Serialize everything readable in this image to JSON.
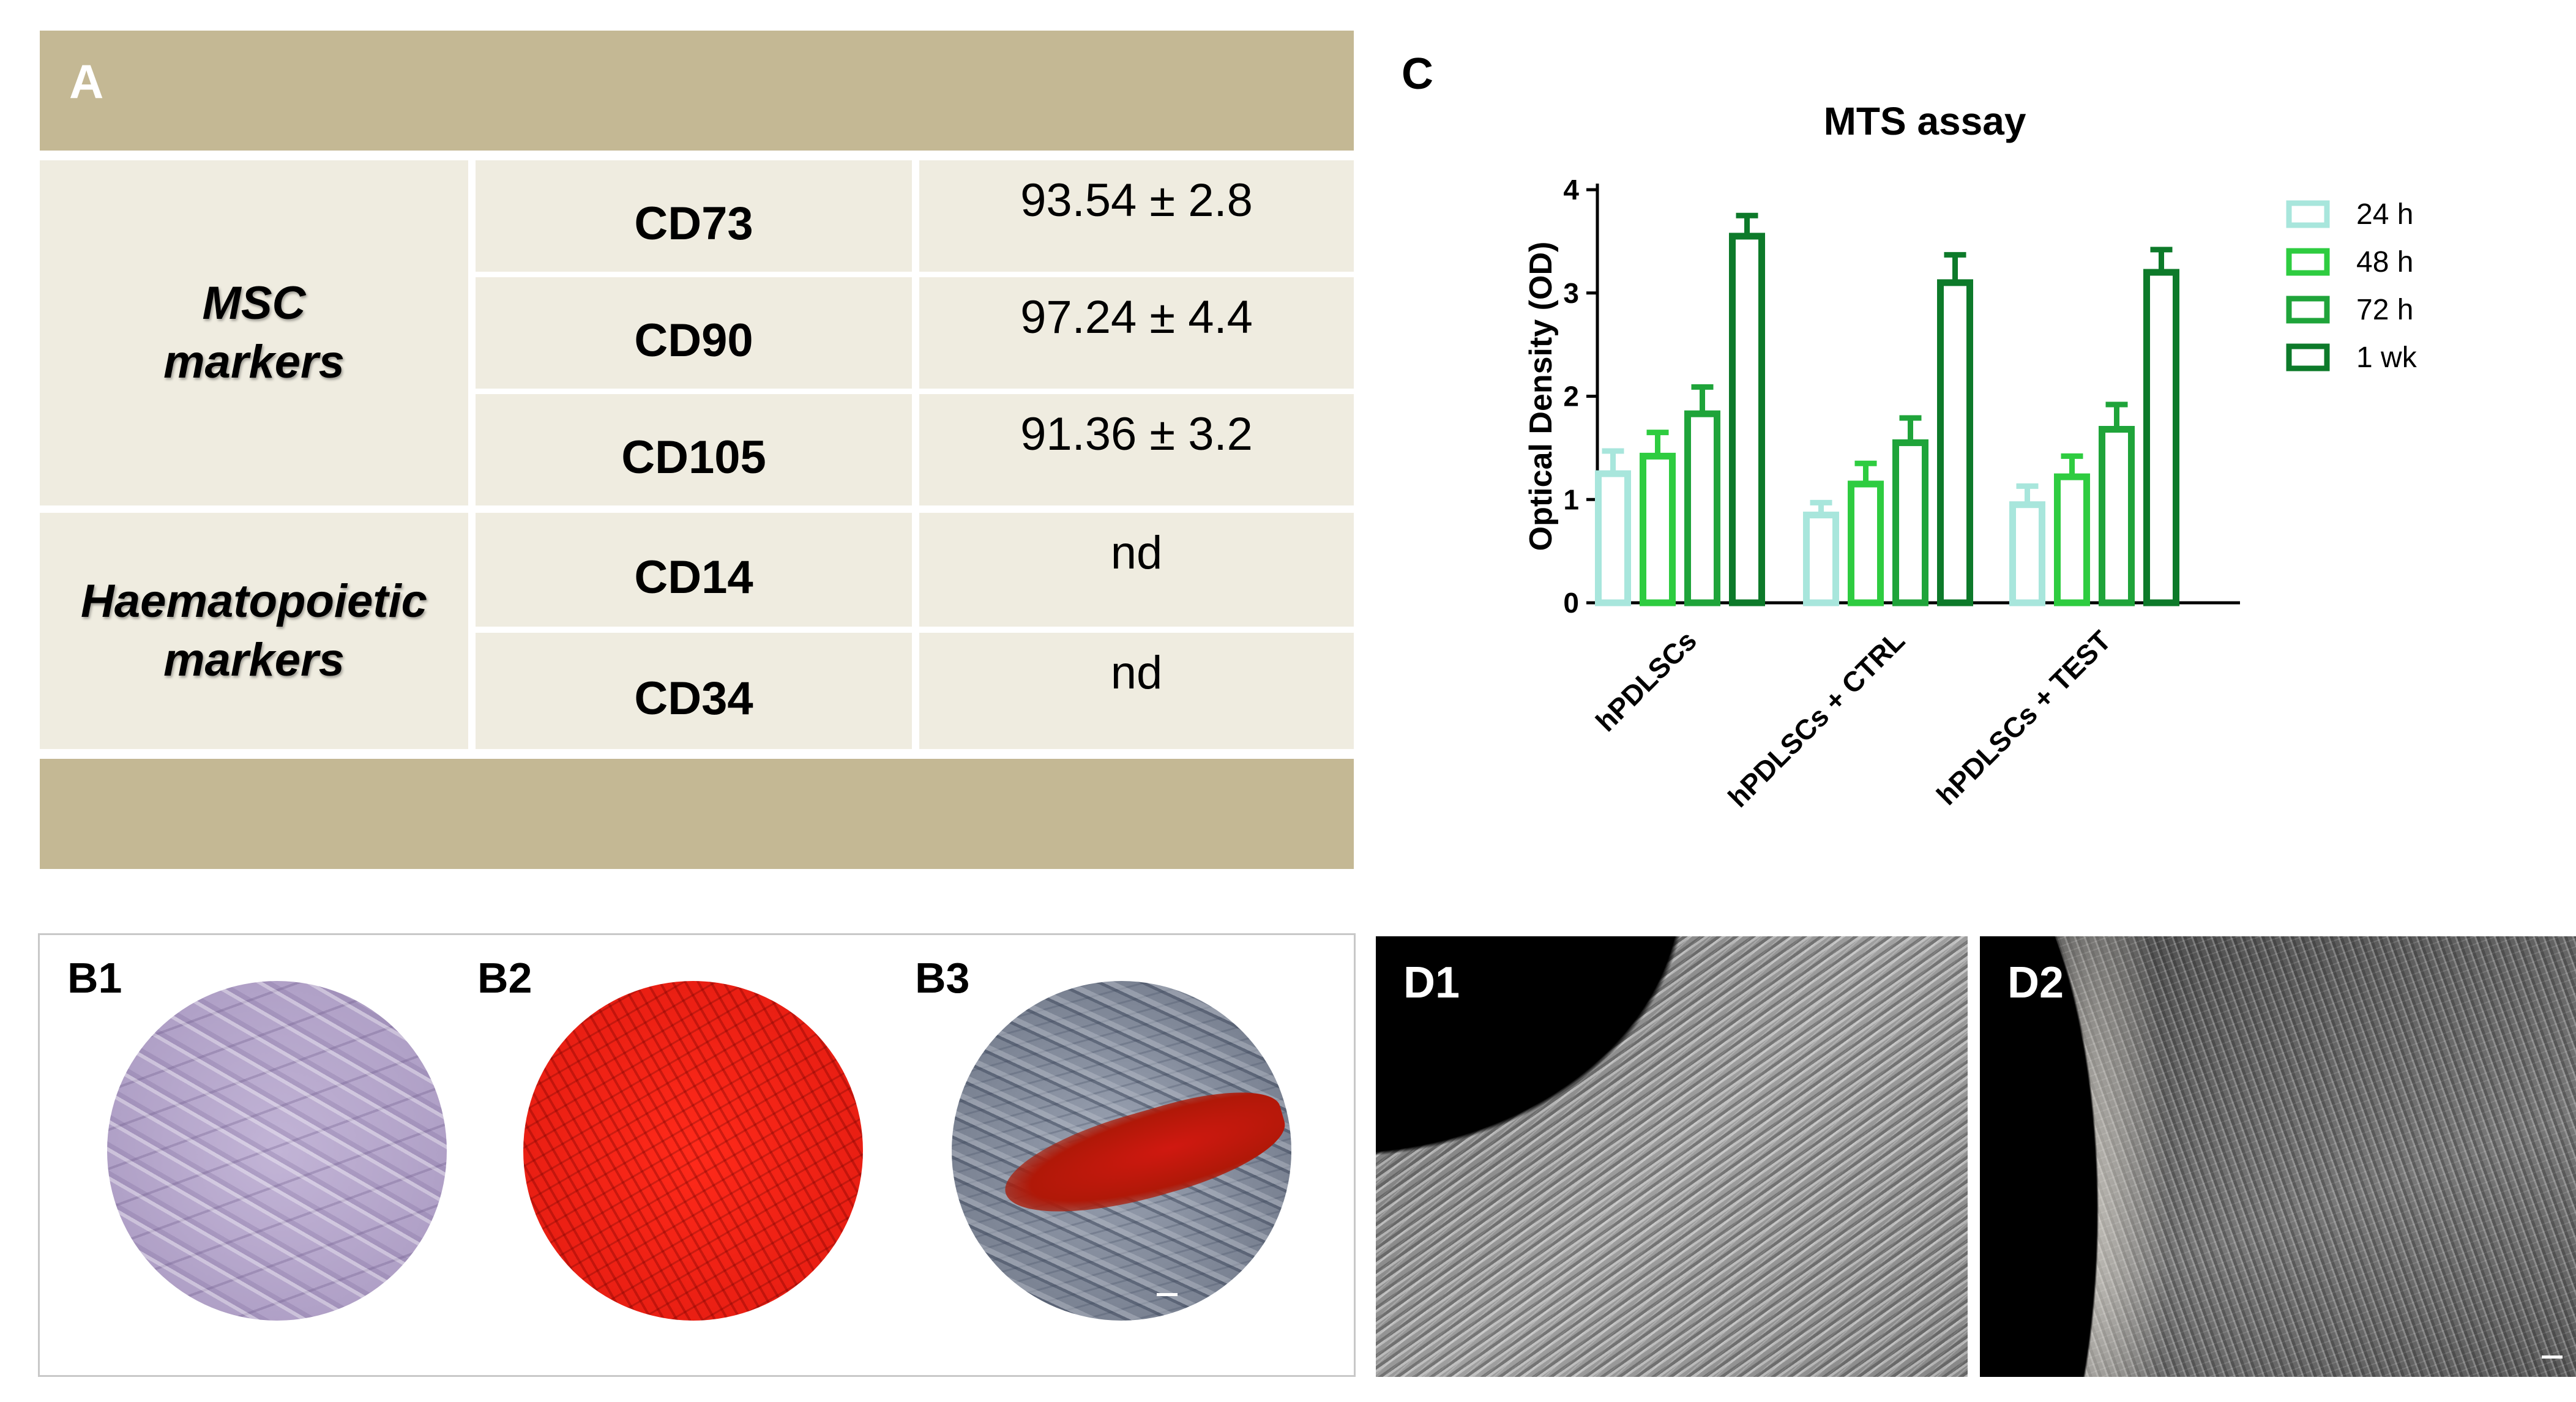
{
  "panel_a": {
    "label": "A",
    "groups": [
      {
        "label_line1": "MSC",
        "label_line2": "markers"
      },
      {
        "label_line1": "Haematopoietic",
        "label_line2": "markers"
      }
    ],
    "rows": [
      {
        "marker": "CD73",
        "value": "93.54 ± 2.8"
      },
      {
        "marker": "CD90",
        "value": "97.24 ± 4.4"
      },
      {
        "marker": "CD105",
        "value": "91.36 ± 3.2"
      },
      {
        "marker": "CD14",
        "value": "nd"
      },
      {
        "marker": "CD34",
        "value": "nd"
      }
    ]
  },
  "panel_c": {
    "label": "C"
  },
  "panel_b": {
    "labels": [
      "B1",
      "B2",
      "B3"
    ]
  },
  "panel_d": {
    "labels": [
      "D1",
      "D2"
    ]
  },
  "colors": {
    "tan": "#c4b894",
    "cell": "#efece0",
    "series": [
      "#a8e6dc",
      "#2ecc40",
      "#1fa43a",
      "#0d7a2a"
    ]
  },
  "chart_data": {
    "type": "bar",
    "title": "MTS assay",
    "xlabel": "",
    "ylabel": "Optical Density (OD)",
    "ylim": [
      0,
      4
    ],
    "yticks": [
      0,
      1,
      2,
      3,
      4
    ],
    "categories": [
      "hPDLSCs",
      "hPDLSCs + CTRL",
      "hPDLSCs + TEST"
    ],
    "series": [
      {
        "name": "24 h",
        "values": [
          1.25,
          0.85,
          0.95
        ],
        "errors": [
          0.22,
          0.12,
          0.18
        ]
      },
      {
        "name": "48 h",
        "values": [
          1.42,
          1.15,
          1.22
        ],
        "errors": [
          0.23,
          0.2,
          0.2
        ]
      },
      {
        "name": "72 h",
        "values": [
          1.83,
          1.55,
          1.68
        ],
        "errors": [
          0.26,
          0.24,
          0.24
        ]
      },
      {
        "name": "1 wk",
        "values": [
          3.55,
          3.1,
          3.2
        ],
        "errors": [
          0.2,
          0.27,
          0.22
        ]
      }
    ],
    "legend": "right"
  }
}
